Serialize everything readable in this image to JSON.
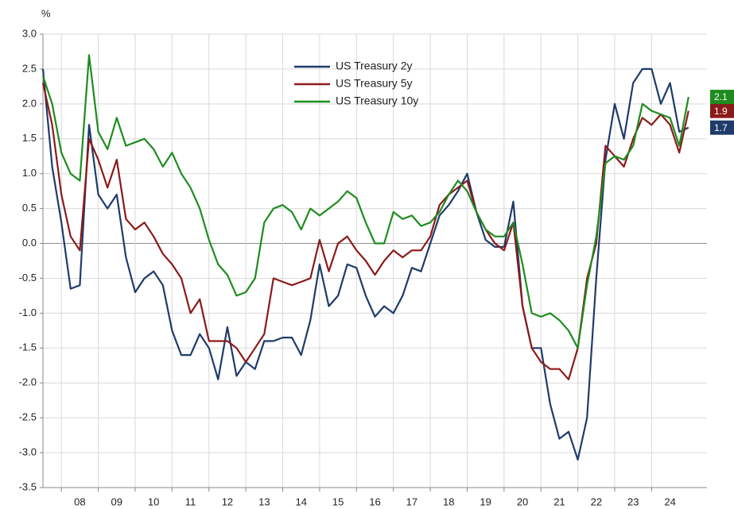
{
  "chart_data": {
    "type": "line",
    "unit_label": "%",
    "x": [
      2007.5,
      2007.75,
      2008,
      2008.25,
      2008.5,
      2008.75,
      2009,
      2009.25,
      2009.5,
      2009.75,
      2010,
      2010.25,
      2010.5,
      2010.75,
      2011,
      2011.25,
      2011.5,
      2011.75,
      2012,
      2012.25,
      2012.5,
      2012.75,
      2013,
      2013.25,
      2013.5,
      2013.75,
      2014,
      2014.25,
      2014.5,
      2014.75,
      2015,
      2015.25,
      2015.5,
      2015.75,
      2016,
      2016.25,
      2016.5,
      2016.75,
      2017,
      2017.25,
      2017.5,
      2017.75,
      2018,
      2018.25,
      2018.5,
      2018.75,
      2019,
      2019.25,
      2019.5,
      2019.75,
      2020,
      2020.25,
      2020.5,
      2020.75,
      2021,
      2021.25,
      2021.5,
      2021.75,
      2022,
      2022.25,
      2022.5,
      2022.75,
      2023,
      2023.25,
      2023.5,
      2023.75,
      2024,
      2024.25,
      2024.5,
      2024.75,
      2025
    ],
    "series": [
      {
        "name": "US Treasury 2y",
        "color": "#1f3b6b",
        "end_label": "1.7",
        "values": [
          2.5,
          1.1,
          0.3,
          -0.65,
          -0.6,
          1.7,
          0.7,
          0.5,
          0.7,
          -0.2,
          -0.7,
          -0.5,
          -0.4,
          -0.6,
          -1.25,
          -1.6,
          -1.6,
          -1.3,
          -1.5,
          -1.95,
          -1.2,
          -1.9,
          -1.7,
          -1.8,
          -1.4,
          -1.4,
          -1.35,
          -1.35,
          -1.6,
          -1.1,
          -0.3,
          -0.9,
          -0.75,
          -0.3,
          -0.35,
          -0.75,
          -1.05,
          -0.9,
          -1.0,
          -0.75,
          -0.35,
          -0.4,
          0.0,
          0.4,
          0.55,
          0.75,
          1.0,
          0.45,
          0.05,
          -0.05,
          -0.05,
          0.6,
          -0.9,
          -1.5,
          -1.5,
          -2.3,
          -2.8,
          -2.7,
          -3.1,
          -2.5,
          -0.5,
          1.2,
          2.0,
          1.5,
          2.3,
          2.5,
          2.5,
          2.0,
          2.3,
          1.6,
          1.66
        ]
      },
      {
        "name": "US Treasury 5y",
        "color": "#8b1a1a",
        "end_label": "1.9",
        "values": [
          2.3,
          1.7,
          0.7,
          0.1,
          -0.1,
          1.5,
          1.2,
          0.8,
          1.2,
          0.35,
          0.2,
          0.3,
          0.1,
          -0.15,
          -0.3,
          -0.5,
          -1.0,
          -0.8,
          -1.4,
          -1.4,
          -1.4,
          -1.5,
          -1.7,
          -1.5,
          -1.3,
          -0.5,
          -0.55,
          -0.6,
          -0.55,
          -0.5,
          0.05,
          -0.4,
          0.0,
          0.1,
          -0.1,
          -0.25,
          -0.45,
          -0.25,
          -0.1,
          -0.2,
          -0.1,
          -0.1,
          0.1,
          0.55,
          0.7,
          0.8,
          0.9,
          0.45,
          0.2,
          0.0,
          -0.1,
          0.3,
          -0.9,
          -1.5,
          -1.7,
          -1.8,
          -1.8,
          -1.95,
          -1.5,
          -0.5,
          0.0,
          1.4,
          1.25,
          1.1,
          1.5,
          1.8,
          1.7,
          1.85,
          1.7,
          1.3,
          1.9
        ]
      },
      {
        "name": "US Treasury 10y",
        "color": "#1e8c1e",
        "end_label": "2.1",
        "values": [
          2.4,
          2.0,
          1.3,
          1.0,
          0.9,
          2.7,
          1.6,
          1.35,
          1.8,
          1.4,
          1.45,
          1.5,
          1.35,
          1.1,
          1.3,
          1.0,
          0.8,
          0.5,
          0.05,
          -0.3,
          -0.45,
          -0.75,
          -0.7,
          -0.5,
          0.3,
          0.5,
          0.55,
          0.45,
          0.2,
          0.5,
          0.4,
          0.5,
          0.6,
          0.75,
          0.65,
          0.3,
          0.0,
          0.0,
          0.45,
          0.35,
          0.4,
          0.25,
          0.3,
          0.45,
          0.7,
          0.9,
          0.75,
          0.45,
          0.2,
          0.1,
          0.1,
          0.3,
          -0.3,
          -1.0,
          -1.05,
          -1.0,
          -1.1,
          -1.25,
          -1.5,
          -0.6,
          0.1,
          1.15,
          1.25,
          1.2,
          1.4,
          2.0,
          1.9,
          1.85,
          1.8,
          1.4,
          2.1
        ]
      }
    ],
    "xlim": [
      2007.5,
      2025.5
    ],
    "xticks": [
      {
        "value": 2008,
        "label": "08"
      },
      {
        "value": 2009,
        "label": "09"
      },
      {
        "value": 2010,
        "label": "10"
      },
      {
        "value": 2011,
        "label": "11"
      },
      {
        "value": 2012,
        "label": "12"
      },
      {
        "value": 2013,
        "label": "13"
      },
      {
        "value": 2014,
        "label": "14"
      },
      {
        "value": 2015,
        "label": "15"
      },
      {
        "value": 2016,
        "label": "16"
      },
      {
        "value": 2017,
        "label": "17"
      },
      {
        "value": 2018,
        "label": "18"
      },
      {
        "value": 2019,
        "label": "19"
      },
      {
        "value": 2020,
        "label": "20"
      },
      {
        "value": 2021,
        "label": "21"
      },
      {
        "value": 2022,
        "label": "22"
      },
      {
        "value": 2023,
        "label": "23"
      },
      {
        "value": 2024,
        "label": "24"
      }
    ],
    "ylim": [
      -3.5,
      3.0
    ],
    "yticks": [
      {
        "value": 3,
        "label": "3.0"
      },
      2.5,
      {
        "value": 2,
        "label": "2.0"
      },
      1.5,
      {
        "value": 1,
        "label": "1.0"
      },
      0.5,
      {
        "value": 0,
        "label": "0.0"
      },
      -0.5,
      {
        "value": -1,
        "label": "-1.0"
      },
      -1.5,
      {
        "value": -2,
        "label": "-2.0"
      },
      -2.5,
      {
        "value": -3,
        "label": "-3.0"
      },
      -3.5
    ],
    "grid": true,
    "legend": "top"
  }
}
